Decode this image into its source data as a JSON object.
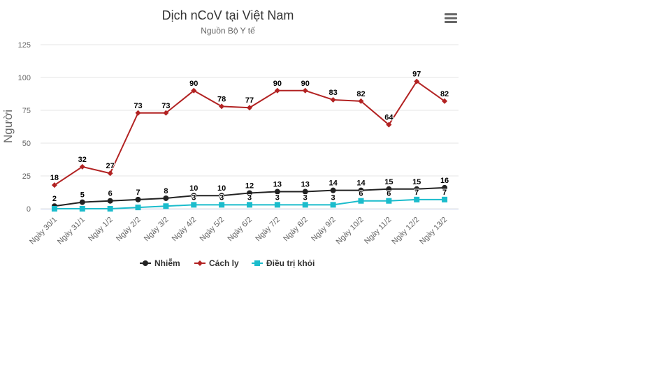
{
  "chart_data": {
    "type": "line",
    "title": "Dịch nCoV tại Việt Nam",
    "subtitle": "Nguồn Bộ Y tế",
    "xlabel": "",
    "ylabel": "Người",
    "ylim": [
      0,
      125
    ],
    "yticks": [
      0,
      25,
      50,
      75,
      100,
      125
    ],
    "ytick_labels": [
      "0",
      "25",
      "50",
      "75",
      "100",
      "125"
    ],
    "grid": true,
    "legend_position": "bottom",
    "categories": [
      "Ngày 30/1",
      "Ngày 31/1",
      "Ngày 1/2",
      "Ngày 2/2",
      "Ngày 3/2",
      "Ngày 4/2",
      "Ngày 5/2",
      "Ngày 6/2",
      "Ngày 7/2",
      "Ngày 8/2",
      "Ngày 9/2",
      "Ngày 10/2",
      "Ngày 11/2",
      "Ngày 12/2",
      "Ngày 13/2"
    ],
    "series": [
      {
        "name": "Nhiễm",
        "color": "#222222",
        "marker": "circle",
        "values": [
          2,
          5,
          6,
          7,
          8,
          10,
          10,
          12,
          13,
          13,
          14,
          14,
          15,
          15,
          16
        ],
        "labels": [
          "2",
          "5",
          "6",
          "7",
          "8",
          "10",
          "10",
          "12",
          "13",
          "13",
          "14",
          "14",
          "15",
          "15",
          "16"
        ]
      },
      {
        "name": "Cách ly",
        "color": "#b22222",
        "marker": "diamond",
        "values": [
          18,
          32,
          27,
          73,
          73,
          90,
          78,
          77,
          90,
          90,
          83,
          82,
          64,
          97,
          82
        ],
        "labels": [
          "18",
          "32",
          "27",
          "73",
          "73",
          "90",
          "78",
          "77",
          "90",
          "90",
          "83",
          "82",
          "64",
          "97",
          "82"
        ]
      },
      {
        "name": "Điều trị khỏi",
        "color": "#1bbccc",
        "marker": "square",
        "values": [
          0,
          0,
          0,
          1,
          2,
          3,
          3,
          3,
          3,
          3,
          3,
          6,
          6,
          7,
          7
        ],
        "labels": [
          "",
          "",
          "",
          "",
          "",
          "3",
          "3",
          "3",
          "3",
          "3",
          "3",
          "6",
          "6",
          "7",
          "7"
        ]
      }
    ]
  },
  "ui": {
    "menu_icon": "hamburger-menu-icon"
  }
}
